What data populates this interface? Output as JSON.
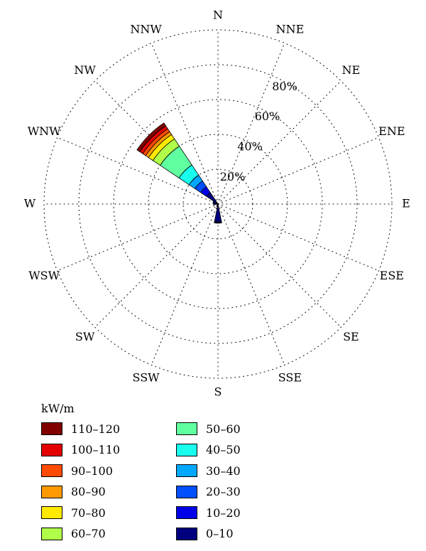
{
  "chart_data": {
    "type": "windrose",
    "unit_label": "kW/m",
    "directions": [
      "N",
      "NNE",
      "NE",
      "ENE",
      "E",
      "ESE",
      "SE",
      "SSE",
      "S",
      "SSW",
      "SW",
      "WSW",
      "W",
      "WNW",
      "NW",
      "NNW"
    ],
    "ring_labels": [
      "20%",
      "40%",
      "60%",
      "80%"
    ],
    "rings_percent": [
      20,
      40,
      60,
      80,
      100
    ],
    "bins": [
      {
        "label": "0–10",
        "color": "#00007f"
      },
      {
        "label": "10–20",
        "color": "#0000e8"
      },
      {
        "label": "20–30",
        "color": "#0050ff"
      },
      {
        "label": "30–40",
        "color": "#00a8ff"
      },
      {
        "label": "40–50",
        "color": "#19ffee"
      },
      {
        "label": "50–60",
        "color": "#60ffa0"
      },
      {
        "label": "60–70",
        "color": "#b0ff48"
      },
      {
        "label": "70–80",
        "color": "#ffea00"
      },
      {
        "label": "80–90",
        "color": "#ff9a00"
      },
      {
        "label": "90–100",
        "color": "#ff4a00"
      },
      {
        "label": "100–110",
        "color": "#e40000"
      },
      {
        "label": "110–120",
        "color": "#800000"
      }
    ],
    "sectors": [
      {
        "direction": "NW",
        "cumulative_percent": [
          8,
          12,
          16,
          20,
          27,
          40,
          45,
          48,
          50,
          52,
          54,
          56
        ]
      },
      {
        "direction": "S",
        "cumulative_percent": [
          10,
          10.5,
          10.8,
          11,
          11,
          11,
          11,
          11,
          11,
          11,
          11,
          11
        ]
      },
      {
        "direction": "SSW",
        "cumulative_percent": [
          1.5,
          1.5,
          1.5,
          1.5,
          1.5,
          1.5,
          1.5,
          1.5,
          1.5,
          1.5,
          1.5,
          1.5
        ]
      },
      {
        "direction": "W",
        "cumulative_percent": [
          2.5,
          2.5,
          2.5,
          2.5,
          2.5,
          2.5,
          2.5,
          2.5,
          2.5,
          2.5,
          2.5,
          2.5
        ]
      },
      {
        "direction": "WNW",
        "cumulative_percent": [
          3,
          3,
          3,
          3,
          3,
          3,
          3,
          3,
          3,
          3,
          3,
          3
        ]
      }
    ]
  },
  "legend": {
    "title": "kW/m",
    "left_column": [
      "110–120",
      "100–110",
      "90–100",
      "80–90",
      "70–80",
      "60–70"
    ],
    "right_column": [
      "50–60",
      "40–50",
      "30–40",
      "20–30",
      "10–20",
      "0–10"
    ]
  }
}
